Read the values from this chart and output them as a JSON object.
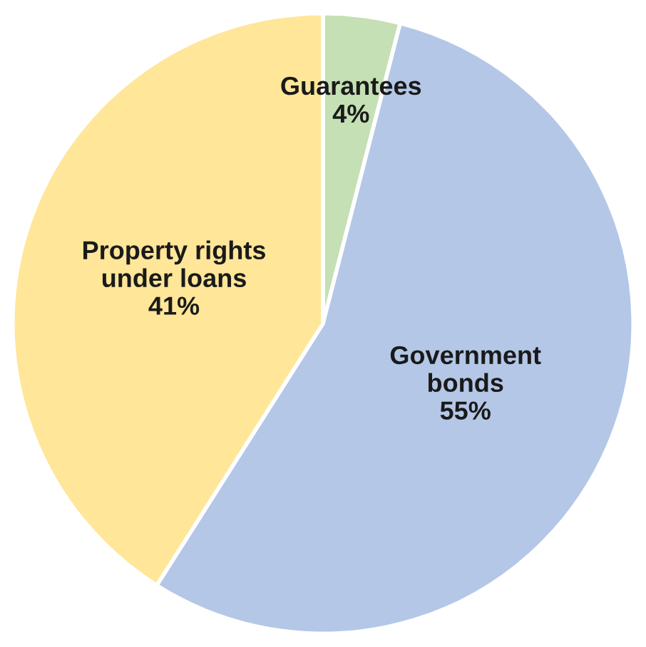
{
  "chart_data": {
    "type": "pie",
    "categories": [
      "Guarantees",
      "Government\nbonds",
      "Property rights\nunder loans"
    ],
    "values": [
      4,
      55,
      41
    ],
    "colors": [
      "#c5e0b4",
      "#b4c7e7",
      "#ffe699"
    ],
    "value_labels": [
      "4%",
      "55%",
      "41%"
    ]
  }
}
